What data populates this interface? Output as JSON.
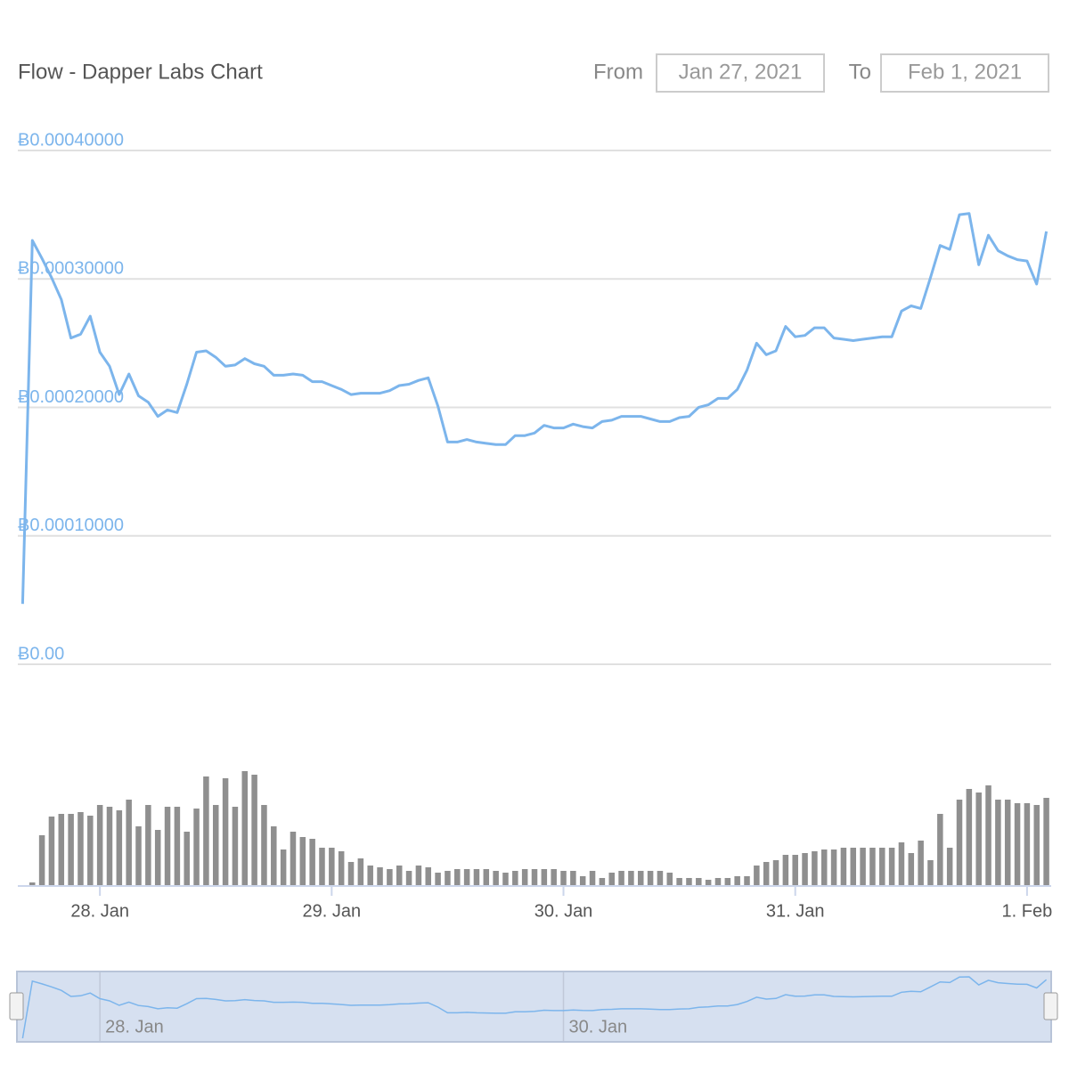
{
  "chart_data": {
    "type": "line",
    "title": "Flow - Dapper Labs Chart",
    "range_from_label": "From",
    "range_from": "Jan 27, 2021",
    "range_to_label": "To",
    "range_to": "Feb 1, 2021",
    "x": [
      16,
      17,
      18,
      19,
      20,
      21,
      22,
      23,
      24,
      25,
      26,
      27,
      28,
      29,
      30,
      31,
      32,
      33,
      34,
      35,
      36,
      37,
      38,
      39,
      40,
      41,
      42,
      43,
      44,
      45,
      46,
      47,
      48,
      49,
      50,
      51,
      52,
      53,
      54,
      55,
      56,
      57,
      58,
      59,
      60,
      61,
      62,
      63,
      64,
      65,
      66,
      67,
      68,
      69,
      70,
      71,
      72,
      73,
      74,
      75,
      76,
      77,
      78,
      79,
      80,
      81,
      82,
      83,
      84,
      85,
      86,
      87,
      88,
      89,
      90,
      91,
      92,
      93,
      94,
      95,
      96,
      97,
      98,
      99,
      100,
      101,
      102,
      103,
      104,
      105,
      106,
      107,
      108,
      109,
      110,
      111,
      112,
      113,
      114,
      115,
      116,
      117,
      118,
      119,
      120,
      121,
      122
    ],
    "xlim": [
      15.5,
      122.5
    ],
    "xticks": [
      {
        "value": 24,
        "label": "28. Jan"
      },
      {
        "value": 48,
        "label": "29. Jan"
      },
      {
        "value": 72,
        "label": "30. Jan"
      },
      {
        "value": 96,
        "label": "31. Jan"
      },
      {
        "value": 120,
        "label": "1. Feb"
      }
    ],
    "ylim": [
      0,
      0.0004
    ],
    "yticks": [
      {
        "value": 0,
        "label": "Ƀ0.00"
      },
      {
        "value": 0.0001,
        "label": "Ƀ0.00010000"
      },
      {
        "value": 0.0002,
        "label": "Ƀ0.00020000"
      },
      {
        "value": 0.0003,
        "label": "Ƀ0.00030000"
      },
      {
        "value": 0.0004,
        "label": "Ƀ0.00040000"
      }
    ],
    "grid": true,
    "series": [
      {
        "color": "#7cb5ec",
        "values": [
          4.7e-05,
          0.00033,
          0.000316,
          0.000301,
          0.000284,
          0.000254,
          0.000257,
          0.000271,
          0.000243,
          0.000232,
          0.00021,
          0.000226,
          0.000209,
          0.000204,
          0.000193,
          0.000198,
          0.000196,
          0.000218,
          0.000243,
          0.000244,
          0.000239,
          0.000232,
          0.000233,
          0.000238,
          0.000234,
          0.000232,
          0.000225,
          0.000225,
          0.000226,
          0.000225,
          0.00022,
          0.00022,
          0.000217,
          0.000214,
          0.00021,
          0.000211,
          0.000211,
          0.000211,
          0.000213,
          0.000217,
          0.000218,
          0.000221,
          0.000223,
          0.000201,
          0.000173,
          0.000173,
          0.000175,
          0.000173,
          0.000172,
          0.000171,
          0.000171,
          0.000178,
          0.000178,
          0.00018,
          0.000186,
          0.000184,
          0.000184,
          0.000187,
          0.000185,
          0.000184,
          0.000189,
          0.00019,
          0.000193,
          0.000193,
          0.000193,
          0.000191,
          0.000189,
          0.000189,
          0.000192,
          0.000193,
          0.0002,
          0.000202,
          0.000207,
          0.000207,
          0.000214,
          0.000229,
          0.00025,
          0.000241,
          0.000244,
          0.000263,
          0.000255,
          0.000256,
          0.000262,
          0.000262,
          0.000254,
          0.000253,
          0.000252,
          0.000253,
          0.000254,
          0.000255,
          0.000255,
          0.000275,
          0.000279,
          0.000277,
          0.000301,
          0.000326,
          0.000323,
          0.00035,
          0.000351,
          0.000311,
          0.000334,
          0.000322,
          0.000318,
          0.000315,
          0.000314,
          0.000296,
          0.000337
        ]
      },
      {
        "type": "bar",
        "color": "#8f8f8f",
        "values": [
          null,
          3,
          56,
          77,
          80,
          80,
          82,
          78,
          90,
          88,
          84,
          96,
          66,
          90,
          62,
          88,
          88,
          60,
          86,
          122,
          90,
          120,
          88,
          128,
          124,
          90,
          66,
          40,
          60,
          54,
          52,
          42,
          42,
          38,
          26,
          30,
          22,
          20,
          18,
          22,
          16,
          22,
          20,
          14,
          16,
          18,
          18,
          18,
          18,
          16,
          14,
          16,
          18,
          18,
          18,
          18,
          16,
          16,
          10,
          16,
          8,
          14,
          16,
          16,
          16,
          16,
          16,
          14,
          8,
          8,
          8,
          6,
          8,
          8,
          10,
          10,
          22,
          26,
          28,
          34,
          34,
          36,
          38,
          40,
          40,
          42,
          42,
          42,
          42,
          42,
          42,
          48,
          36,
          50,
          28,
          80,
          42,
          96,
          108,
          104,
          112,
          96,
          96,
          92,
          92,
          90,
          98
        ]
      }
    ],
    "navigator_ticks": [
      {
        "value": 24,
        "label": "28. Jan"
      },
      {
        "value": 72,
        "label": "30. Jan"
      }
    ]
  }
}
